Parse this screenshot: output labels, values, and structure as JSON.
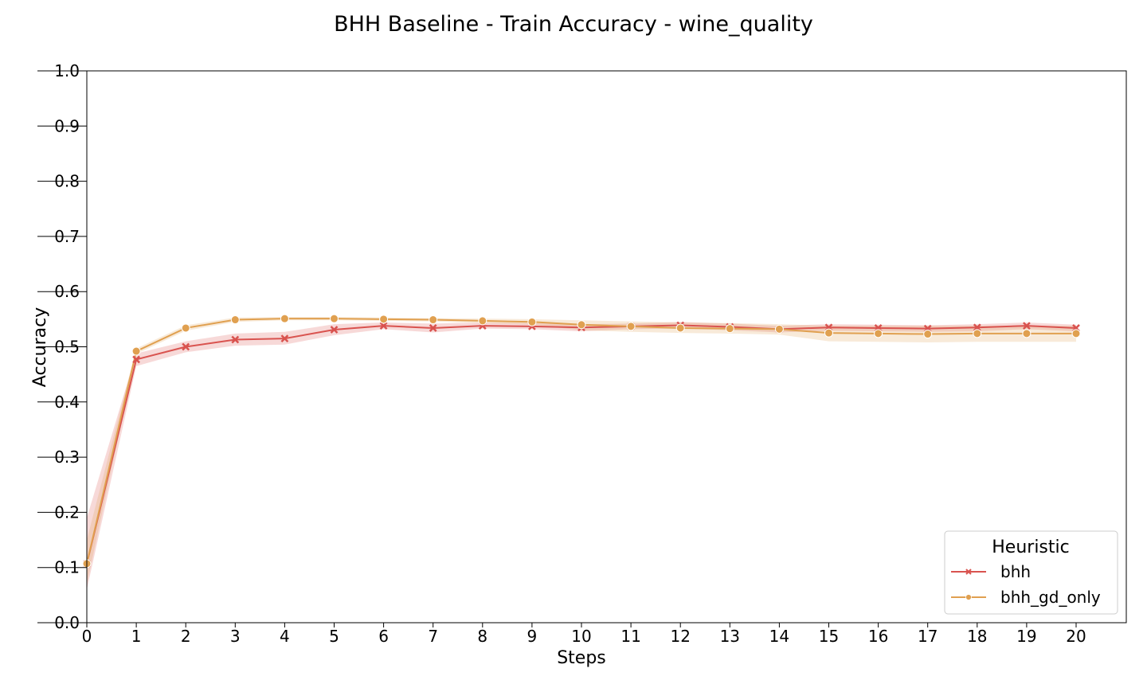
{
  "chart_data": {
    "type": "line",
    "title": "BHH Baseline - Train Accuracy - wine_quality",
    "xlabel": "Steps",
    "ylabel": "Accuracy",
    "xlim": [
      0,
      21
    ],
    "ylim": [
      0.0,
      1.0
    ],
    "x_ticks": [
      "0",
      "1",
      "2",
      "3",
      "4",
      "5",
      "6",
      "7",
      "8",
      "9",
      "10",
      "11",
      "12",
      "13",
      "14",
      "15",
      "16",
      "17",
      "18",
      "19",
      "20"
    ],
    "y_ticks": [
      "0.0",
      "0.1",
      "0.2",
      "0.3",
      "0.4",
      "0.5",
      "0.6",
      "0.7",
      "0.8",
      "0.9",
      "1.0"
    ],
    "grid": false,
    "legend": {
      "title": "Heuristic",
      "placement": "bottom-right"
    },
    "series": [
      {
        "name": "bhh",
        "color": "#d9534f",
        "marker": "x",
        "x": [
          0,
          1,
          2,
          3,
          4,
          5,
          6,
          7,
          8,
          9,
          10,
          11,
          12,
          13,
          14,
          15,
          16,
          17,
          18,
          19,
          20
        ],
        "values": [
          0.107,
          0.477,
          0.5,
          0.513,
          0.515,
          0.531,
          0.538,
          0.534,
          0.538,
          0.537,
          0.535,
          0.537,
          0.539,
          0.536,
          0.532,
          0.535,
          0.534,
          0.533,
          0.535,
          0.538,
          0.534
        ],
        "ci_lower": [
          0.06,
          0.465,
          0.49,
          0.502,
          0.504,
          0.521,
          0.532,
          0.526,
          0.533,
          0.532,
          0.528,
          0.532,
          0.533,
          0.53,
          0.526,
          0.529,
          0.528,
          0.527,
          0.528,
          0.532,
          0.528
        ],
        "ci_upper": [
          0.19,
          0.488,
          0.51,
          0.524,
          0.527,
          0.541,
          0.544,
          0.542,
          0.544,
          0.543,
          0.541,
          0.542,
          0.545,
          0.542,
          0.538,
          0.541,
          0.54,
          0.539,
          0.541,
          0.544,
          0.54
        ]
      },
      {
        "name": "bhh_gd_only",
        "color": "#e0a050",
        "marker": "o",
        "x": [
          0,
          1,
          2,
          3,
          4,
          5,
          6,
          7,
          8,
          9,
          10,
          11,
          12,
          13,
          14,
          15,
          16,
          17,
          18,
          19,
          20
        ],
        "values": [
          0.107,
          0.492,
          0.534,
          0.549,
          0.551,
          0.551,
          0.55,
          0.549,
          0.547,
          0.545,
          0.54,
          0.537,
          0.534,
          0.533,
          0.532,
          0.525,
          0.524,
          0.523,
          0.524,
          0.524,
          0.524
        ],
        "ci_lower": [
          0.07,
          0.487,
          0.529,
          0.545,
          0.548,
          0.548,
          0.547,
          0.546,
          0.543,
          0.54,
          0.53,
          0.527,
          0.525,
          0.524,
          0.522,
          0.51,
          0.509,
          0.508,
          0.509,
          0.509,
          0.509
        ],
        "ci_upper": [
          0.15,
          0.497,
          0.539,
          0.553,
          0.554,
          0.554,
          0.553,
          0.552,
          0.551,
          0.55,
          0.548,
          0.546,
          0.544,
          0.543,
          0.541,
          0.538,
          0.538,
          0.538,
          0.538,
          0.538,
          0.538
        ]
      }
    ]
  }
}
